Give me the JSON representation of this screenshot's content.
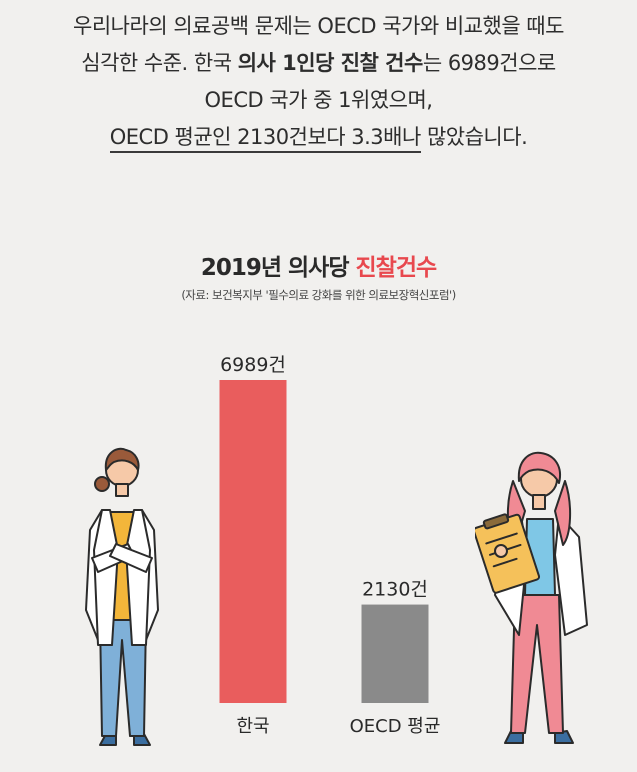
{
  "intro": {
    "line1": "우리나라의 의료공백 문제는 OECD 국가와 비교했을 때도",
    "line2_pre": "심각한 수준. 한국 ",
    "line2_bold": "의사 1인당 진찰 건수",
    "line2_post": "는 6989건으로",
    "line3": "OECD 국가 중 1위였으며,",
    "line4_ul": "OECD 평균인 2130건보다 3.3배나",
    "line4_post": " 많았습니다."
  },
  "chart_data": {
    "type": "bar",
    "title_prefix": "2019년 의사당 ",
    "title_highlight": "진찰건수",
    "source": "(자료: 보건복지부 '필수의료 강화를 위한 의료보장혁신포럼')",
    "categories": [
      "한국",
      "OECD 평균"
    ],
    "values": [
      6989,
      2130
    ],
    "value_labels": [
      "6989건",
      "2130건"
    ],
    "colors": [
      "#e95d5d",
      "#8a8a8a"
    ],
    "ylim": [
      0,
      6989
    ],
    "grid": false
  },
  "colors": {
    "accent": "#e8484e",
    "background": "#f1f0ee"
  }
}
